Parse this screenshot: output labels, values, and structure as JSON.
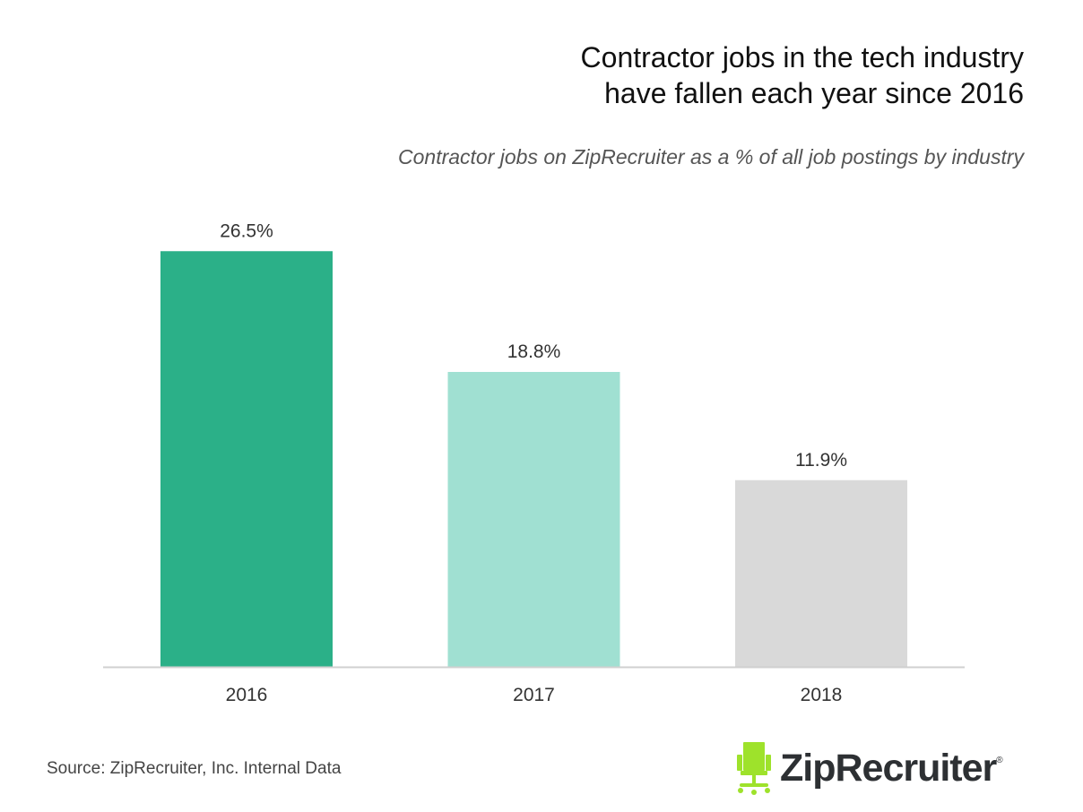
{
  "chart_data": {
    "type": "bar",
    "title_lines": [
      "Contractor jobs in the tech industry",
      "have fallen each year since 2016"
    ],
    "subtitle": "Contractor jobs on ZipRecruiter as a % of all job postings by industry",
    "categories": [
      "2016",
      "2017",
      "2018"
    ],
    "values": [
      26.5,
      18.8,
      11.9
    ],
    "data_labels": [
      "26.5%",
      "18.8%",
      "11.9%"
    ],
    "colors": [
      "#2bb088",
      "#a0e0d2",
      "#d9d9d9"
    ],
    "unit": "%",
    "grid": false,
    "legend": "none"
  },
  "footer": {
    "source": "Source: ZipRecruiter, Inc. Internal Data",
    "logo_text": "ZipRecruiter",
    "logo_mark": "®",
    "logo_color": "#9ee22b"
  }
}
